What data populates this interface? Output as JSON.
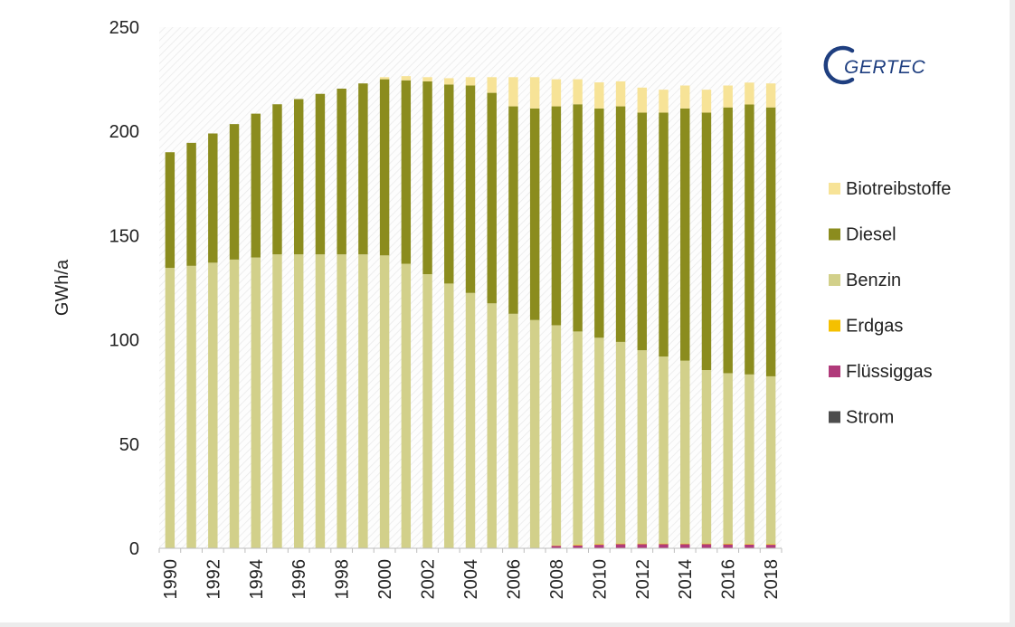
{
  "logo": {
    "text": "GERTEC"
  },
  "chart_data": {
    "type": "bar",
    "stacked": true,
    "ylabel": "GWh/a",
    "xlabel": "",
    "ylim": [
      0,
      250
    ],
    "yticks": [
      0,
      50,
      100,
      150,
      200,
      250
    ],
    "x_tick_labels": [
      "1990",
      "1992",
      "1994",
      "1996",
      "1998",
      "2000",
      "2002",
      "2004",
      "2006",
      "2008",
      "2010",
      "2012",
      "2014",
      "2016",
      "2018"
    ],
    "categories": [
      "1990",
      "1991",
      "1992",
      "1993",
      "1994",
      "1995",
      "1996",
      "1997",
      "1998",
      "1999",
      "2000",
      "2001",
      "2002",
      "2003",
      "2004",
      "2005",
      "2006",
      "2007",
      "2008",
      "2009",
      "2010",
      "2011",
      "2012",
      "2013",
      "2014",
      "2015",
      "2016",
      "2017",
      "2018"
    ],
    "legend_position": "right",
    "series": [
      {
        "name": "Strom",
        "color": "#4d4d4d",
        "values": [
          0,
          0,
          0,
          0,
          0,
          0,
          0,
          0,
          0,
          0,
          0,
          0,
          0,
          0,
          0,
          0,
          0,
          0,
          0.2,
          0.2,
          0.2,
          0.2,
          0.2,
          0.2,
          0.2,
          0.2,
          0.2,
          0.2,
          0.2
        ]
      },
      {
        "name": "Flüssiggas",
        "color": "#b03a7a",
        "values": [
          0,
          0,
          0,
          0,
          0,
          0,
          0,
          0,
          0,
          0,
          0,
          0,
          0,
          0,
          0,
          0,
          0,
          0,
          1.0,
          1.2,
          1.5,
          1.8,
          1.8,
          1.8,
          1.8,
          1.8,
          1.7,
          1.6,
          1.5
        ]
      },
      {
        "name": "Erdgas",
        "color": "#f5c000",
        "values": [
          0,
          0,
          0,
          0,
          0,
          0,
          0,
          0,
          0,
          0,
          0,
          0,
          0,
          0,
          0,
          0,
          0,
          0,
          0.2,
          0.3,
          0.3,
          0.3,
          0.3,
          0.3,
          0.3,
          0.3,
          0.3,
          0.3,
          0.3
        ]
      },
      {
        "name": "Benzin",
        "color": "#d2d08a",
        "values": [
          134.5,
          135.5,
          137,
          138.5,
          139.5,
          141,
          141,
          141,
          141,
          141,
          140.5,
          136.5,
          131.5,
          127,
          122.5,
          117.5,
          112.5,
          109.5,
          105.6,
          102.3,
          99.0,
          96.7,
          92.7,
          89.7,
          87.7,
          83.2,
          81.8,
          81.3,
          80.5
        ]
      },
      {
        "name": "Diesel",
        "color": "#8b8c1e",
        "values": [
          55.5,
          59,
          62,
          65,
          69,
          72,
          74.5,
          77,
          79.5,
          82,
          84.5,
          88,
          92.5,
          95.5,
          99.5,
          101,
          99.5,
          101.5,
          105,
          109,
          110,
          113,
          114,
          117,
          121,
          123.5,
          127.5,
          129.5,
          129
        ]
      },
      {
        "name": "Biotreibstoffe",
        "color": "#f7e397",
        "values": [
          0,
          0,
          0,
          0,
          0,
          0,
          0,
          0,
          0,
          0,
          1,
          2,
          2,
          3,
          4,
          7.5,
          14,
          15,
          13,
          12,
          12.5,
          12,
          12,
          11,
          11,
          11,
          10.5,
          10.5,
          11.5
        ]
      }
    ]
  }
}
